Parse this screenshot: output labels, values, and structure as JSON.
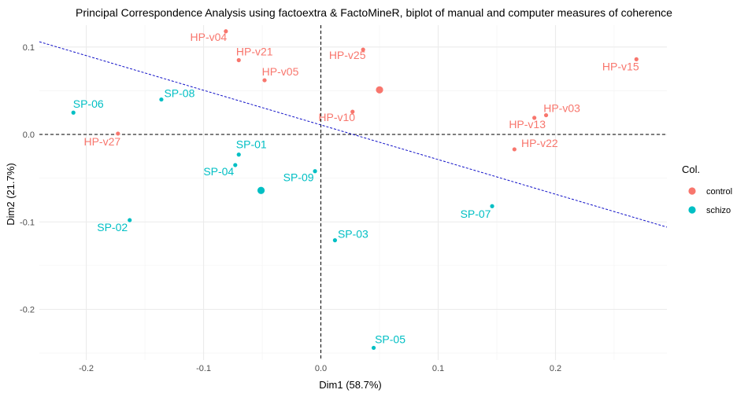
{
  "chart_data": {
    "type": "scatter",
    "title": "Principal Correspondence Analysis using factoextra & FactoMineR, biplot of manual and computer measures of coherence",
    "xlabel": "Dim1 (58.7%)",
    "ylabel": "Dim2 (21.7%)",
    "xlim": [
      -0.24,
      0.295
    ],
    "ylim": [
      -0.258,
      0.125
    ],
    "x_ticks": [
      -0.2,
      -0.1,
      0.0,
      0.1,
      0.2
    ],
    "x_tick_labels": [
      "-0.2",
      "-0.1",
      "0.0",
      "0.1",
      "0.2"
    ],
    "y_ticks": [
      -0.2,
      -0.1,
      0.0,
      0.1
    ],
    "y_tick_labels": [
      "-0.2",
      "-0.1",
      "0.0",
      "0.1"
    ],
    "grid": true,
    "legend": {
      "title": "Col.",
      "placement": "right",
      "entries": [
        {
          "label": "control",
          "color": "#F8766D"
        },
        {
          "label": "schizo",
          "color": "#00BFC4"
        }
      ]
    },
    "series": [
      {
        "name": "control",
        "color": "#F8766D",
        "points": [
          {
            "label": "HP-v04",
            "x": -0.081,
            "y": 0.118
          },
          {
            "label": "HP-v21",
            "x": -0.07,
            "y": 0.085
          },
          {
            "label": "HP-v05",
            "x": -0.048,
            "y": 0.062
          },
          {
            "label": "HP-v25",
            "x": 0.036,
            "y": 0.097
          },
          {
            "label": "HP-v15",
            "x": 0.269,
            "y": 0.086
          },
          {
            "label": "HP-v10",
            "x": 0.027,
            "y": 0.026
          },
          {
            "label": "HP-v03",
            "x": 0.192,
            "y": 0.022
          },
          {
            "label": "HP-v13",
            "x": 0.182,
            "y": 0.019
          },
          {
            "label": "HP-v22",
            "x": 0.165,
            "y": -0.017
          },
          {
            "label": "HP-v27",
            "x": -0.173,
            "y": 0.001
          }
        ],
        "centroid": {
          "x": 0.05,
          "y": 0.051
        }
      },
      {
        "name": "schizo",
        "color": "#00BFC4",
        "points": [
          {
            "label": "SP-06",
            "x": -0.211,
            "y": 0.025
          },
          {
            "label": "SP-08",
            "x": -0.136,
            "y": 0.04
          },
          {
            "label": "SP-01",
            "x": -0.07,
            "y": -0.023
          },
          {
            "label": "SP-04",
            "x": -0.073,
            "y": -0.035
          },
          {
            "label": "SP-09",
            "x": -0.005,
            "y": -0.042
          },
          {
            "label": "SP-02",
            "x": -0.163,
            "y": -0.098
          },
          {
            "label": "SP-03",
            "x": 0.012,
            "y": -0.121
          },
          {
            "label": "SP-07",
            "x": 0.146,
            "y": -0.082
          },
          {
            "label": "SP-05",
            "x": 0.045,
            "y": -0.244
          }
        ],
        "centroid": {
          "x": -0.051,
          "y": -0.064
        }
      }
    ],
    "reference_lines": {
      "hline": 0,
      "vline": 0
    },
    "fit_line": {
      "x1": -0.24,
      "y1": 0.106,
      "x2": 0.295,
      "y2": -0.106,
      "color": "#1010C8"
    }
  }
}
